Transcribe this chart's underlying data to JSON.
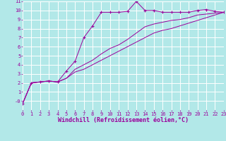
{
  "background_color": "#b2e8e8",
  "grid_color": "#ffffff",
  "line_color": "#9b009b",
  "marker": "+",
  "xlabel": "Windchill (Refroidissement éolien,°C)",
  "xlim": [
    0,
    23
  ],
  "ylim": [
    -1,
    11
  ],
  "xticks": [
    0,
    1,
    2,
    3,
    4,
    5,
    6,
    7,
    8,
    9,
    10,
    11,
    12,
    13,
    14,
    15,
    16,
    17,
    18,
    19,
    20,
    21,
    22,
    23
  ],
  "yticks": [
    0,
    1,
    2,
    3,
    4,
    5,
    6,
    7,
    8,
    9,
    10,
    11
  ],
  "ytick_labels": [
    "-0",
    "1",
    "2",
    "3",
    "4",
    "5",
    "6",
    "7",
    "8",
    "9",
    "10",
    "11"
  ],
  "series": [
    {
      "x": [
        0,
        1,
        2,
        3,
        4,
        5,
        6,
        7,
        8,
        9,
        10,
        11,
        12,
        13,
        14,
        15,
        16,
        17,
        18,
        19,
        20,
        21,
        22,
        23
      ],
      "y": [
        -0.3,
        2.0,
        2.1,
        2.2,
        2.1,
        3.3,
        4.4,
        7.0,
        8.3,
        9.8,
        9.8,
        9.8,
        9.9,
        11.0,
        10.0,
        10.0,
        9.8,
        9.8,
        9.8,
        9.8,
        10.0,
        10.1,
        9.9,
        9.8
      ],
      "has_markers": true
    },
    {
      "x": [
        0,
        1,
        2,
        3,
        4,
        5,
        6,
        7,
        8,
        9,
        10,
        11,
        12,
        13,
        14,
        15,
        16,
        17,
        18,
        19,
        20,
        21,
        22,
        23
      ],
      "y": [
        -0.3,
        2.0,
        2.1,
        2.2,
        2.1,
        2.5,
        3.5,
        4.0,
        4.5,
        5.2,
        5.8,
        6.2,
        6.8,
        7.5,
        8.2,
        8.5,
        8.7,
        8.9,
        9.0,
        9.2,
        9.5,
        9.6,
        9.7,
        9.8
      ],
      "has_markers": false
    },
    {
      "x": [
        0,
        1,
        2,
        3,
        4,
        5,
        6,
        7,
        8,
        9,
        10,
        11,
        12,
        13,
        14,
        15,
        16,
        17,
        18,
        19,
        20,
        21,
        22,
        23
      ],
      "y": [
        -0.3,
        2.0,
        2.1,
        2.2,
        2.1,
        2.5,
        3.2,
        3.5,
        4.0,
        4.5,
        5.0,
        5.5,
        6.0,
        6.5,
        7.0,
        7.5,
        7.8,
        8.0,
        8.3,
        8.6,
        8.9,
        9.2,
        9.5,
        9.8
      ],
      "has_markers": false
    }
  ],
  "tick_fontsize": 5.0,
  "label_fontsize": 6.0
}
